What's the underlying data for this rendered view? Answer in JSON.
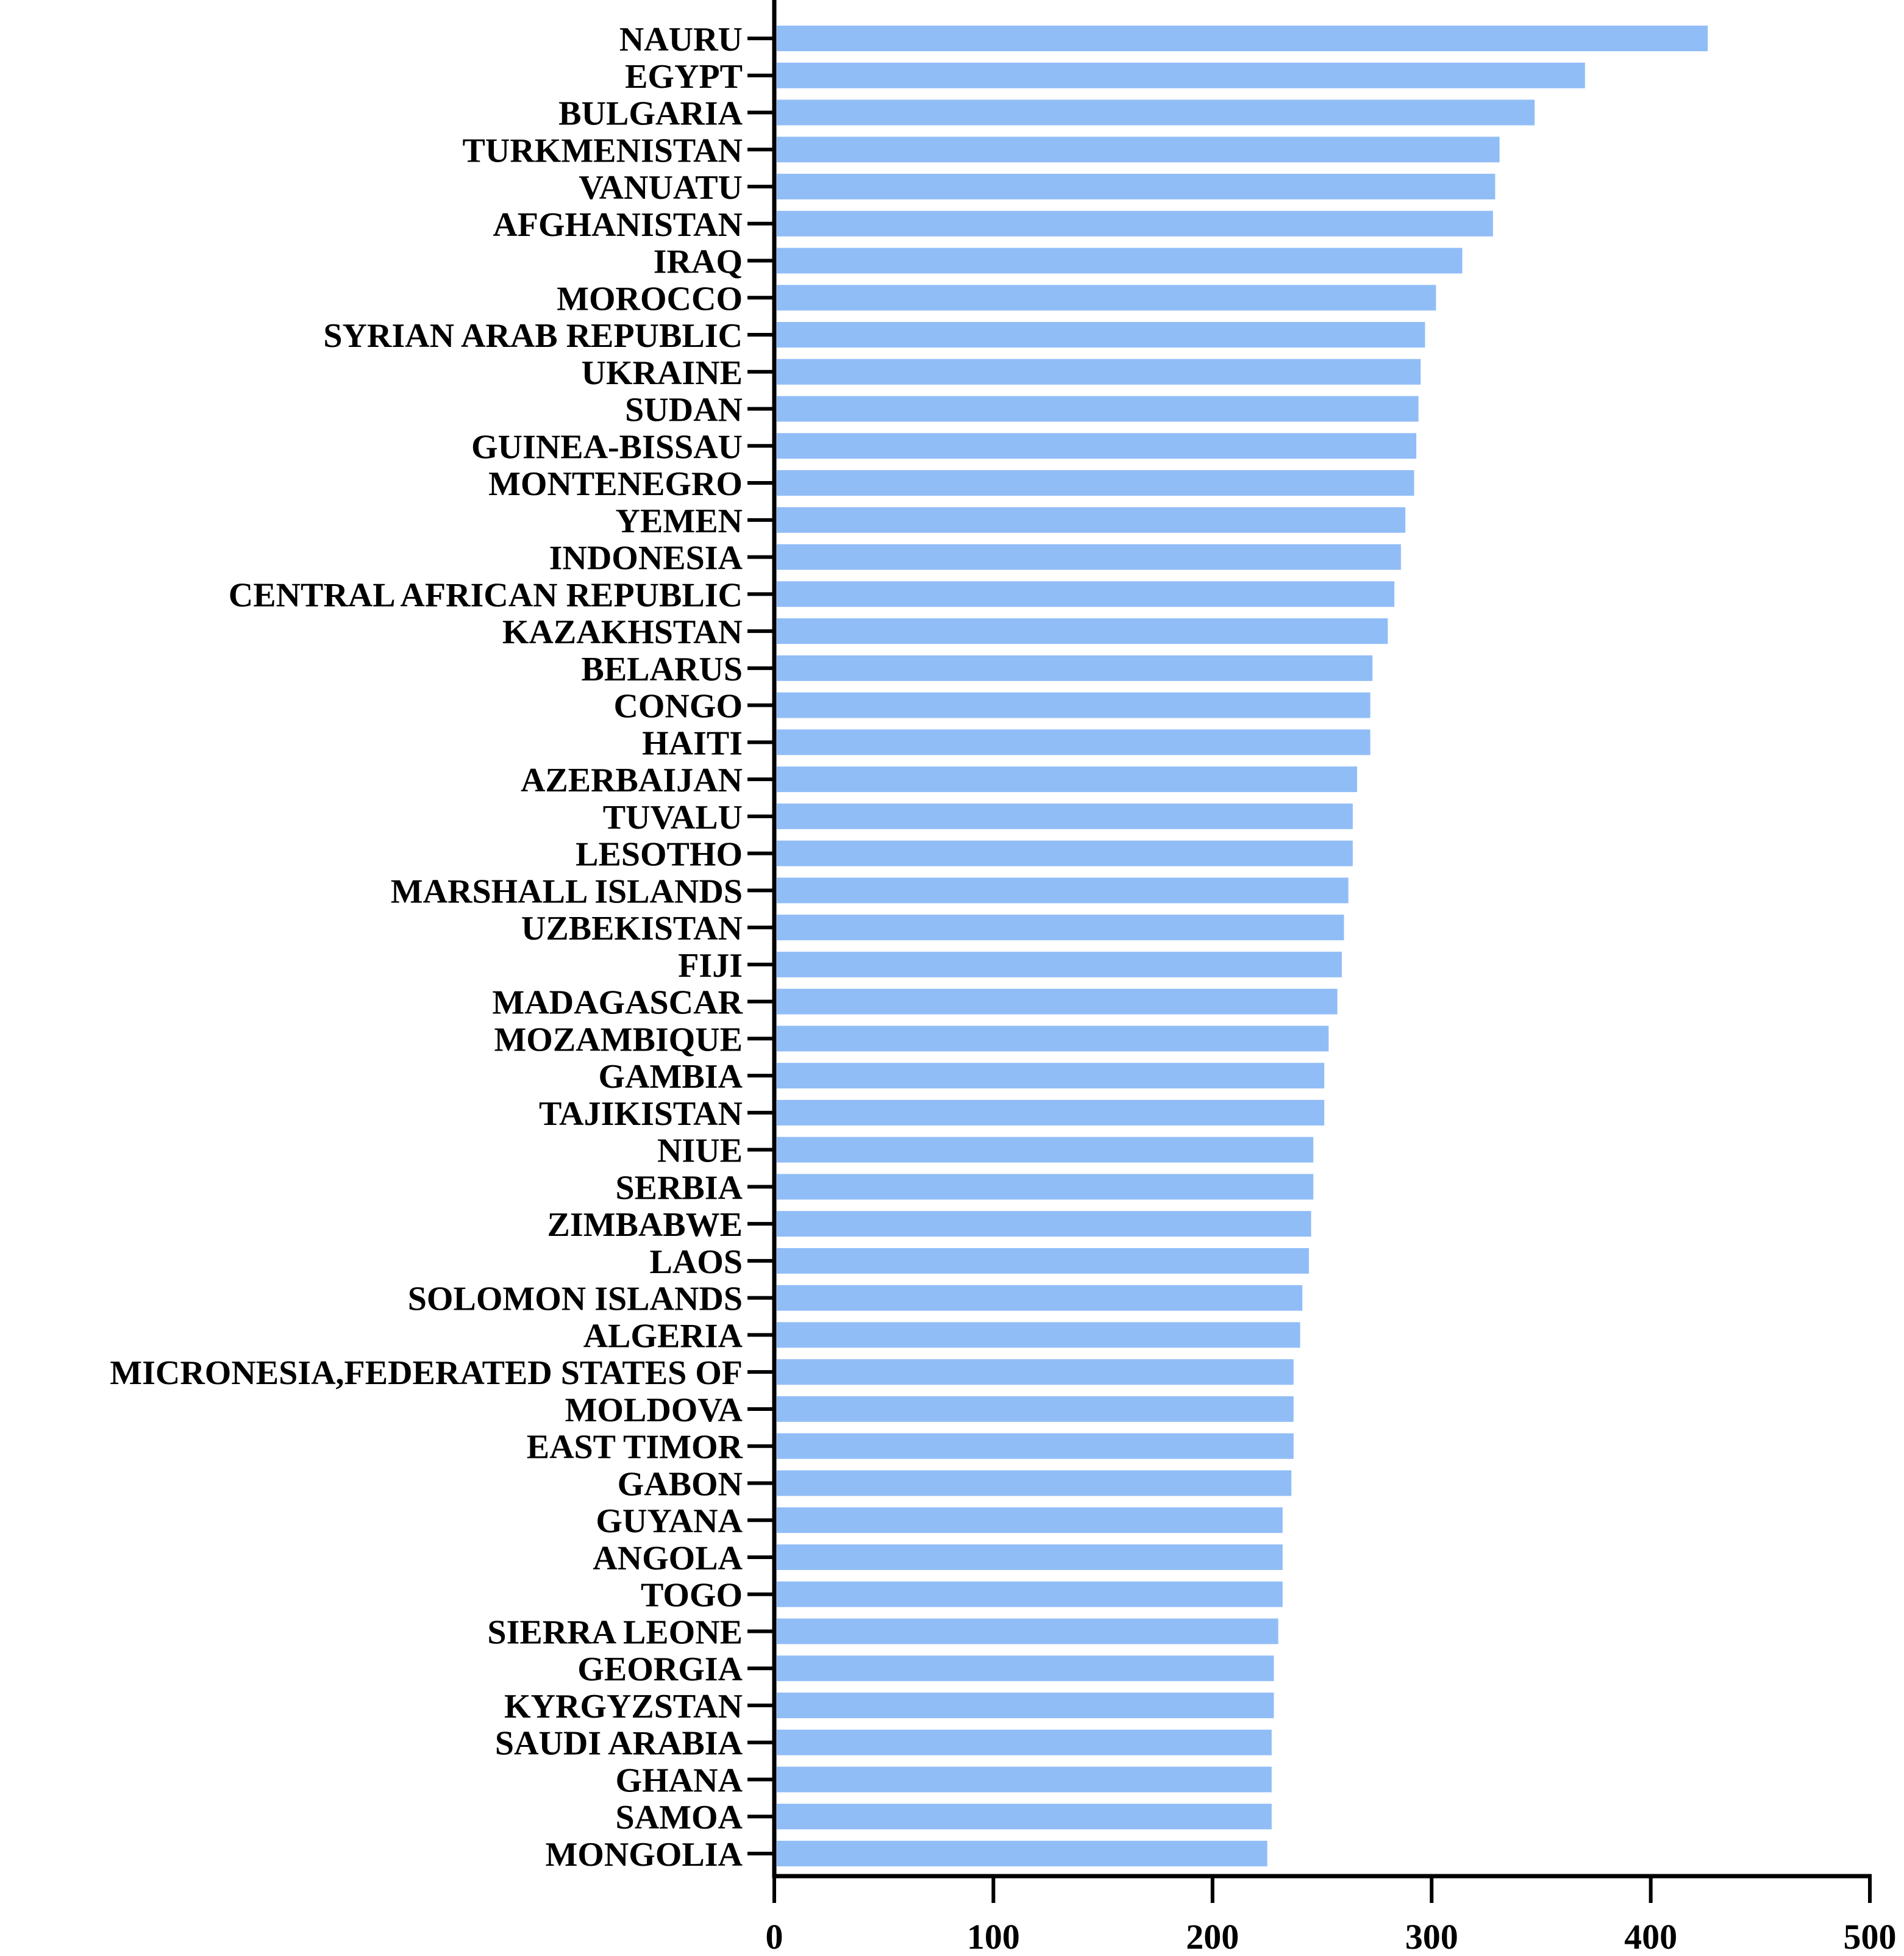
{
  "chart_data": {
    "type": "bar",
    "orientation": "horizontal",
    "title": "",
    "xlabel": "",
    "ylabel": "",
    "xlim": [
      0,
      500
    ],
    "x_ticks": [
      0,
      100,
      200,
      300,
      400,
      500
    ],
    "grid": false,
    "legend": "none",
    "bar_color": "#91bdf7",
    "axis_color": "#000000",
    "categories": [
      "NAURU",
      "EGYPT",
      "BULGARIA",
      "TURKMENISTAN",
      "VANUATU",
      "AFGHANISTAN",
      "IRAQ",
      "MOROCCO",
      "SYRIAN ARAB REPUBLIC",
      "UKRAINE",
      "SUDAN",
      "GUINEA-BISSAU",
      "MONTENEGRO",
      "YEMEN",
      "INDONESIA",
      "CENTRAL AFRICAN REPUBLIC",
      "KAZAKHSTAN",
      "BELARUS",
      "CONGO",
      "HAITI",
      "AZERBAIJAN",
      "TUVALU",
      "LESOTHO",
      "MARSHALL ISLANDS",
      "UZBEKISTAN",
      "FIJI",
      "MADAGASCAR",
      "MOZAMBIQUE",
      "GAMBIA",
      "TAJIKISTAN",
      "NIUE",
      "SERBIA",
      "ZIMBABWE",
      "LAOS",
      "SOLOMON ISLANDS",
      "ALGERIA",
      "MICRONESIA,FEDERATED STATES OF",
      "MOLDOVA",
      "EAST TIMOR",
      "GABON",
      "GUYANA",
      "ANGOLA",
      "TOGO",
      "SIERRA LEONE",
      "GEORGIA",
      "KYRGYZSTAN",
      "SAUDI ARABIA",
      "GHANA",
      "SAMOA",
      "MONGOLIA"
    ],
    "values": [
      426,
      370,
      347,
      331,
      329,
      328,
      314,
      302,
      297,
      295,
      294,
      293,
      292,
      288,
      286,
      283,
      280,
      273,
      272,
      272,
      266,
      264,
      264,
      262,
      260,
      259,
      257,
      253,
      251,
      251,
      246,
      246,
      245,
      244,
      241,
      240,
      237,
      237,
      237,
      236,
      232,
      232,
      232,
      230,
      228,
      228,
      227,
      227,
      227,
      225
    ]
  }
}
